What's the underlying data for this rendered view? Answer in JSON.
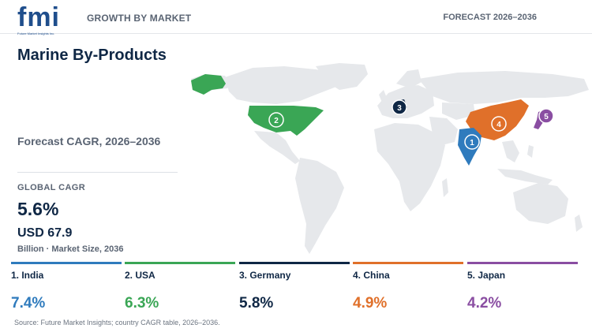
{
  "header": {
    "logo_text": "fmi",
    "logo_tagline": "Future Market Insights Inc.",
    "left_label": "GROWTH BY MARKET",
    "right_label": "FORECAST 2026–2036"
  },
  "title": "Marine By-Products",
  "subtitle": "Forecast CAGR, 2026–2036",
  "global": {
    "label": "GLOBAL CAGR",
    "value": "5.6%",
    "market_size": "USD 67.9",
    "market_caption": "Billion · Market Size, 2036"
  },
  "countries": [
    {
      "rank": "1",
      "name": "1. India",
      "cagr": "7.4%",
      "color": "#2f7bbd"
    },
    {
      "rank": "2",
      "name": "2. USA",
      "cagr": "6.3%",
      "color": "#3aa655"
    },
    {
      "rank": "3",
      "name": "3. Germany",
      "cagr": "5.8%",
      "color": "#0f2745"
    },
    {
      "rank": "4",
      "name": "4. China",
      "cagr": "4.9%",
      "color": "#e0702a"
    },
    {
      "rank": "5",
      "name": "5. Japan",
      "cagr": "4.2%",
      "color": "#8a4ea2"
    }
  ],
  "colors": {
    "land": "#e6e8eb",
    "accent": "#0f2745"
  },
  "source": "Source: Future Market Insights; country CAGR table, 2026–2036."
}
